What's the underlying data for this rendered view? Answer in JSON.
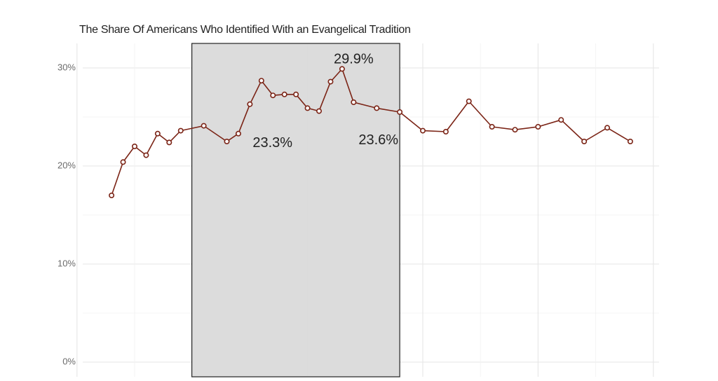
{
  "chart_data": {
    "type": "line",
    "title": "The Share Of Americans Who Identified With an Evangelical Tradition",
    "xlabel": "",
    "ylabel": "",
    "ylim": [
      0,
      31
    ],
    "xlim": [
      1970.5,
      2020.5
    ],
    "grid": true,
    "line_color": "#7b2416",
    "shade_color": "#d9d9d9",
    "highlight_range": [
      1981,
      1998
    ],
    "yticks": [
      {
        "value": 0,
        "label": "0%"
      },
      {
        "value": 10,
        "label": "10%"
      },
      {
        "value": 20,
        "label": "20%"
      },
      {
        "value": 30,
        "label": "30%"
      }
    ],
    "series": [
      {
        "x": [
          1973,
          1974,
          1975,
          1976,
          1977,
          1978,
          1979,
          1981,
          1983,
          1984,
          1985,
          1986,
          1987,
          1988,
          1989,
          1990,
          1991,
          1992,
          1993,
          1994,
          1996,
          1998,
          2000,
          2002,
          2004,
          2006,
          2008,
          2010,
          2012,
          2014,
          2016,
          2018
        ],
        "y": [
          17.0,
          20.4,
          22.0,
          21.1,
          23.3,
          22.4,
          23.6,
          24.1,
          22.5,
          23.3,
          26.3,
          28.7,
          27.2,
          27.3,
          27.3,
          25.9,
          25.6,
          28.6,
          29.9,
          26.5,
          25.9,
          25.5,
          23.6,
          23.5,
          26.6,
          24.0,
          23.7,
          24.0,
          24.7,
          22.5,
          23.9,
          22.5
        ]
      }
    ],
    "annotations": [
      {
        "x": 1985,
        "y": 23.3,
        "label": "23.3%"
      },
      {
        "x": 1994,
        "y": 29.9,
        "label": "29.9%"
      },
      {
        "x": 1998,
        "y": 23.6,
        "label": "23.6%"
      }
    ]
  }
}
